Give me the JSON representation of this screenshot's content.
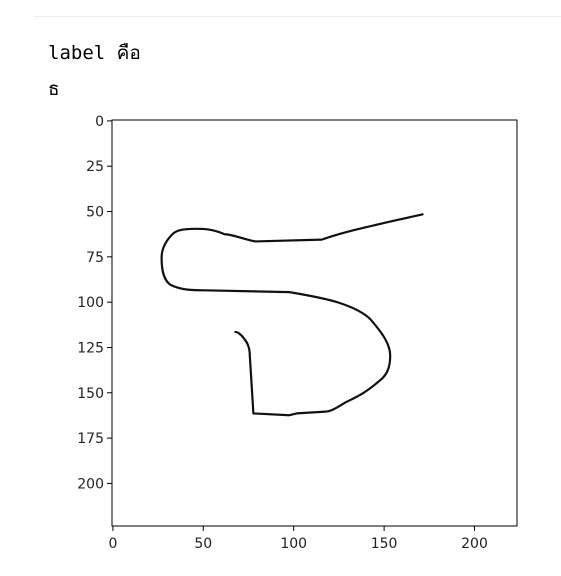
{
  "output": {
    "lines": [
      "label คือ",
      "ธ"
    ]
  },
  "chart_data": {
    "type": "image",
    "xlim": [
      -0.5,
      223.5
    ],
    "ylim": [
      223.5,
      -0.5
    ],
    "xticks": [
      0,
      50,
      100,
      150,
      200
    ],
    "yticks": [
      0,
      25,
      50,
      75,
      100,
      125,
      150,
      175,
      200
    ]
  }
}
